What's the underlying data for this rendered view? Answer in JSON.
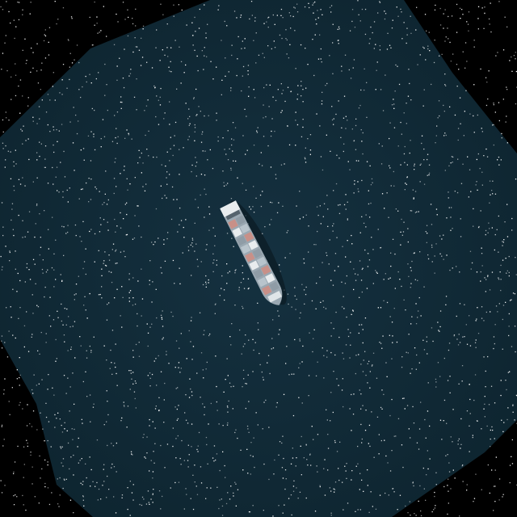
{
  "scene": {
    "subject": "container-ship",
    "colors": {
      "nodata": "#000000",
      "water": "#0f2733",
      "water_light": "#163747",
      "hull": "#b8c4cc",
      "deck_white": "#e8ecee",
      "container_red": "#c89088",
      "container_grey": "#8f9ca6",
      "shadow": "#0a1a22",
      "speckle": "#ffffff"
    }
  }
}
